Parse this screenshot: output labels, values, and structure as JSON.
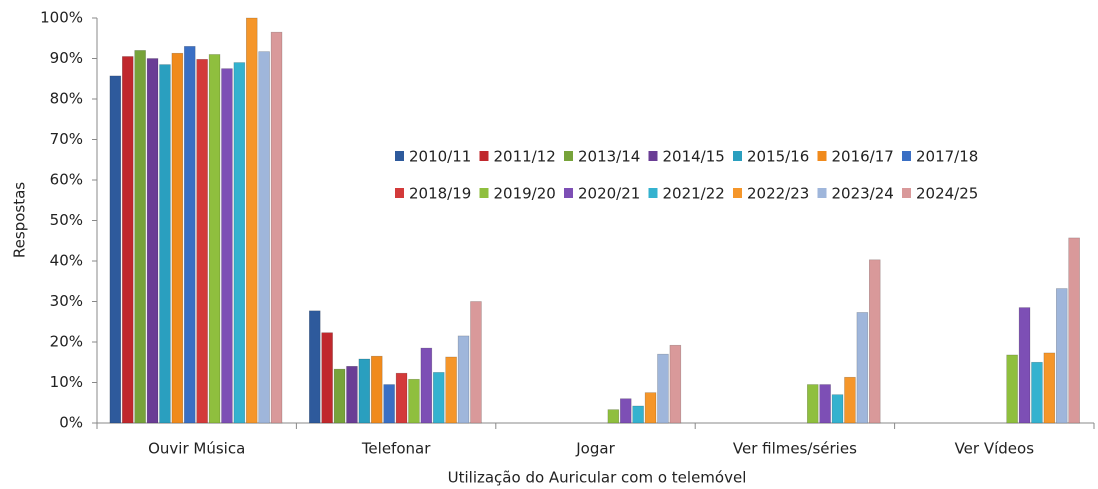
{
  "chart_data": {
    "type": "bar",
    "x_label": "Utilização do Auricular com o telemóvel",
    "y_label": "Respostas",
    "categories": [
      "Ouvir Música",
      "Telefonar",
      "Jogar",
      "Ver filmes/séries",
      "Ver Vídeos"
    ],
    "ylim": [
      0,
      100
    ],
    "yticks": [
      {
        "value": 0,
        "label": "0%"
      },
      {
        "value": 10,
        "label": "10%"
      },
      {
        "value": 20,
        "label": "20%"
      },
      {
        "value": 30,
        "label": "30%"
      },
      {
        "value": 40,
        "label": "40%"
      },
      {
        "value": 50,
        "label": "50%"
      },
      {
        "value": 60,
        "label": "60%"
      },
      {
        "value": 70,
        "label": "70%"
      },
      {
        "value": 80,
        "label": "80%"
      },
      {
        "value": 90,
        "label": "90%"
      },
      {
        "value": 100,
        "label": "100%"
      }
    ],
    "grid": false,
    "legend_position": "center",
    "series": [
      {
        "name": "2010/11",
        "color": "#2e5a9c",
        "values": [
          85.7,
          27.7,
          null,
          null,
          null
        ]
      },
      {
        "name": "2011/12",
        "color": "#c0282d",
        "values": [
          90.5,
          22.3,
          null,
          null,
          null
        ]
      },
      {
        "name": "2013/14",
        "color": "#77a33a",
        "values": [
          92,
          13.3,
          null,
          null,
          null
        ]
      },
      {
        "name": "2014/15",
        "color": "#6a3d95",
        "values": [
          90,
          14,
          null,
          null,
          null
        ]
      },
      {
        "name": "2015/16",
        "color": "#2a9fbf",
        "values": [
          88.5,
          15.8,
          null,
          null,
          null
        ]
      },
      {
        "name": "2016/17",
        "color": "#f08a1c",
        "values": [
          91.3,
          16.5,
          null,
          null,
          null
        ]
      },
      {
        "name": "2017/18",
        "color": "#3a6fc4",
        "values": [
          93,
          9.5,
          null,
          null,
          null
        ]
      },
      {
        "name": "2018/19",
        "color": "#d33a3a",
        "values": [
          89.8,
          12.3,
          null,
          null,
          null
        ]
      },
      {
        "name": "2019/20",
        "color": "#8fbf3e",
        "values": [
          91,
          10.8,
          3.3,
          9.5,
          16.8
        ]
      },
      {
        "name": "2020/21",
        "color": "#7d4fb5",
        "values": [
          87.5,
          18.5,
          6,
          9.5,
          28.5
        ]
      },
      {
        "name": "2021/22",
        "color": "#34b2cf",
        "values": [
          89,
          12.5,
          4.2,
          7,
          15
        ]
      },
      {
        "name": "2022/23",
        "color": "#f5962a",
        "values": [
          100,
          16.3,
          7.5,
          11.3,
          17.3
        ]
      },
      {
        "name": "2023/24",
        "color": "#9fb6db",
        "values": [
          91.7,
          21.5,
          17,
          27.3,
          33.2
        ]
      },
      {
        "name": "2024/25",
        "color": "#d9999a",
        "values": [
          96.5,
          30,
          19.2,
          40.3,
          45.7
        ]
      }
    ]
  }
}
